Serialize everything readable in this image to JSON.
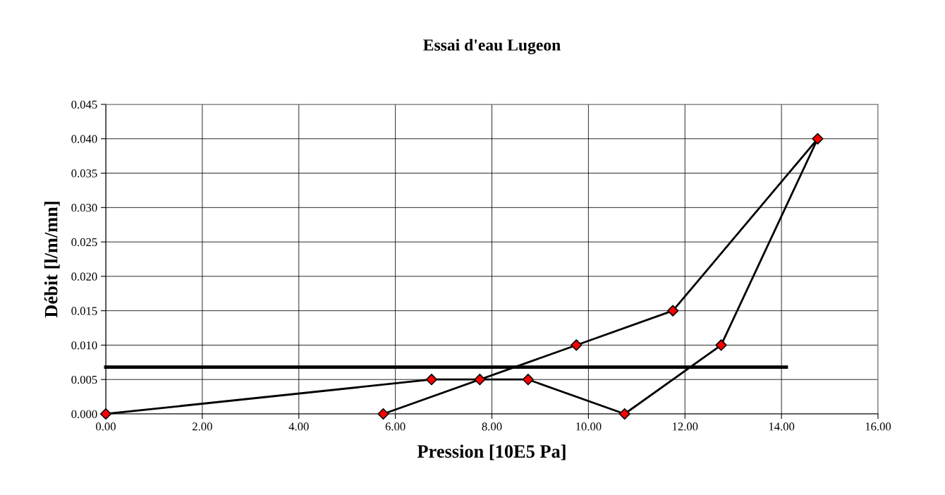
{
  "chart_data": {
    "type": "line",
    "title": "Essai d'eau Lugeon",
    "xlabel": "Pression [10E5 Pa]",
    "ylabel": "Débit [l/m/mn]",
    "series": [
      {
        "color": "#000000",
        "marker": "diamond",
        "colors": [
          "#ff0000",
          "#ff0000",
          "#ff0000",
          "#ff0000",
          "#ff0000",
          "#ff0000",
          "#ff0000",
          "#ff0000",
          "#ff0000",
          "#ff0000"
        ],
        "x": [
          0,
          6.75,
          7.75,
          8.75,
          10.75,
          12.75,
          14.75,
          11.75,
          9.75,
          5.75
        ],
        "values": [
          0,
          0.005,
          0.005,
          0.005,
          0,
          0.01,
          0.04,
          0.015,
          0.01,
          0
        ]
      },
      {
        "color": "#000000",
        "marker": "none",
        "x": [
          0,
          14.1
        ],
        "values": [
          0.0068,
          0.0068
        ]
      }
    ],
    "xlim": [
      0,
      16
    ],
    "xticks": [
      {
        "value": 0,
        "label": "0.00"
      },
      {
        "value": 2,
        "label": "2.00"
      },
      {
        "value": 4,
        "label": "4.00"
      },
      {
        "value": 6,
        "label": "6.00"
      },
      {
        "value": 8,
        "label": "8.00"
      },
      {
        "value": 10,
        "label": "10.00"
      },
      {
        "value": 12,
        "label": "12.00"
      },
      {
        "value": 14,
        "label": "14.00"
      },
      {
        "value": 16,
        "label": "16.00"
      }
    ],
    "ylim": [
      0,
      0.045
    ],
    "yticks": [
      {
        "value": 0,
        "label": "0.000"
      },
      {
        "value": 0.005,
        "label": "0.005"
      },
      {
        "value": 0.01,
        "label": "0.010"
      },
      {
        "value": 0.015,
        "label": "0.015"
      },
      {
        "value": 0.02,
        "label": "0.020"
      },
      {
        "value": 0.025,
        "label": "0.025"
      },
      {
        "value": 0.03,
        "label": "0.030"
      },
      {
        "value": 0.035,
        "label": "0.035"
      },
      {
        "value": 0.04,
        "label": "0.040"
      },
      {
        "value": 0.045,
        "label": "0.045"
      }
    ],
    "grid": true,
    "line_style": "solid"
  }
}
